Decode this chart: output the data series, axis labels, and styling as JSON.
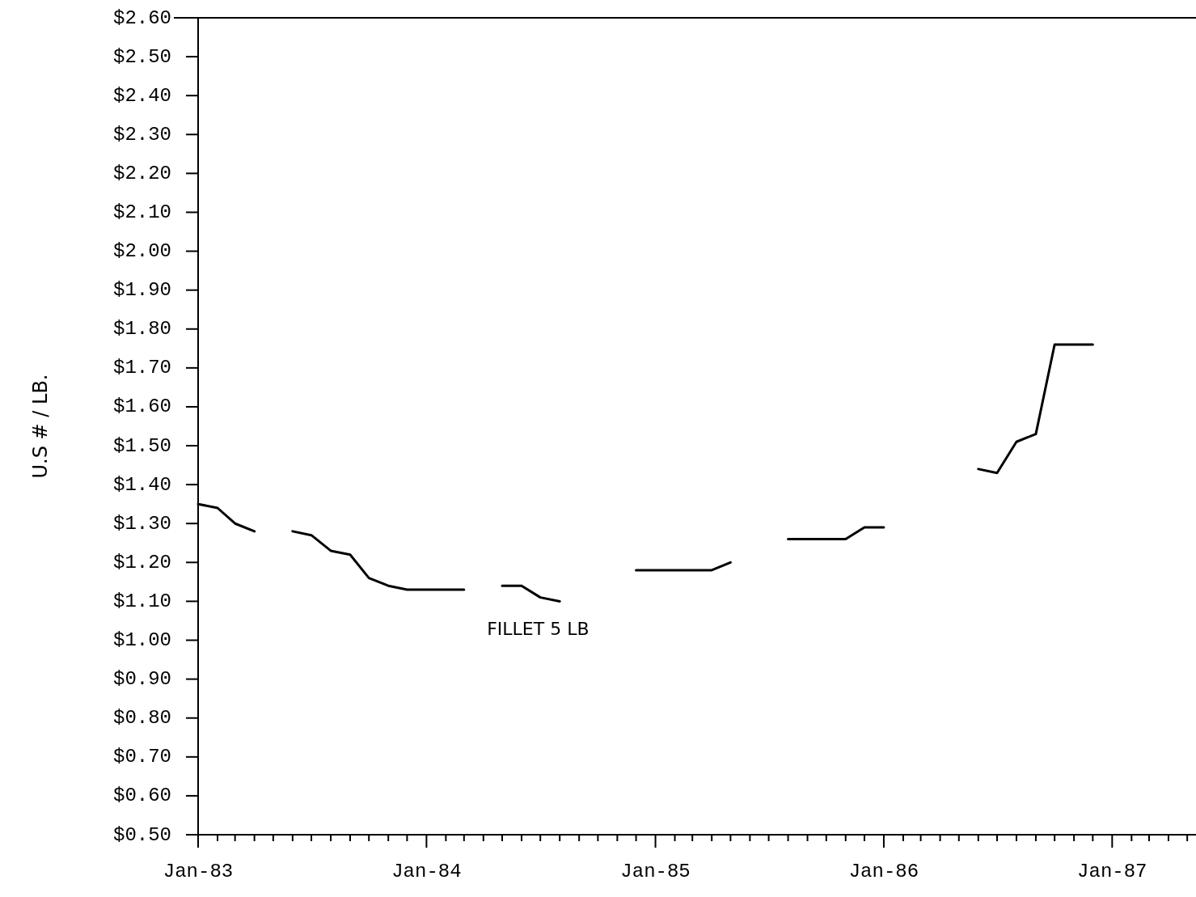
{
  "chart_data": {
    "type": "line",
    "ylabel": "U.S # / LB.",
    "grid": false,
    "marker": "none",
    "line_style": "solid",
    "x": [
      "1983-01",
      "1983-02",
      "1983-03",
      "1983-04",
      "1983-05",
      "1983-06",
      "1983-07",
      "1983-08",
      "1983-09",
      "1983-10",
      "1983-11",
      "1983-12",
      "1984-01",
      "1984-02",
      "1984-03",
      "1984-04",
      "1984-05",
      "1984-06",
      "1984-07",
      "1984-08",
      "1984-09",
      "1984-10",
      "1984-11",
      "1984-12",
      "1985-01",
      "1985-02",
      "1985-03",
      "1985-04",
      "1985-05",
      "1985-06",
      "1985-07",
      "1985-08",
      "1985-09",
      "1985-10",
      "1985-11",
      "1985-12",
      "1986-01",
      "1986-02",
      "1986-03",
      "1986-04",
      "1986-05",
      "1986-06",
      "1986-07",
      "1986-08",
      "1986-09",
      "1986-10",
      "1986-11",
      "1986-12"
    ],
    "series": [
      {
        "name": "FILLET 5 LB",
        "color": "#000000",
        "values": [
          1.35,
          1.34,
          1.3,
          1.28,
          null,
          1.28,
          1.27,
          1.23,
          1.22,
          1.16,
          1.14,
          1.13,
          1.13,
          1.13,
          1.13,
          null,
          1.14,
          1.14,
          1.11,
          1.1,
          null,
          null,
          null,
          1.18,
          1.18,
          1.18,
          1.18,
          1.18,
          1.2,
          null,
          null,
          1.26,
          1.26,
          1.26,
          1.26,
          1.29,
          1.29,
          null,
          null,
          null,
          null,
          1.44,
          1.43,
          1.51,
          1.53,
          1.76,
          1.76,
          1.76
        ]
      }
    ],
    "xlim": [
      "1983-01",
      "1987-05-15"
    ],
    "xticks": [
      {
        "value": "1983-01",
        "label": "Jan-83"
      },
      {
        "value": "1983-02",
        "label": null
      },
      {
        "value": "1983-03",
        "label": null
      },
      {
        "value": "1983-04",
        "label": null
      },
      {
        "value": "1983-05",
        "label": null
      },
      {
        "value": "1983-06",
        "label": null
      },
      {
        "value": "1983-07",
        "label": null
      },
      {
        "value": "1983-08",
        "label": null
      },
      {
        "value": "1983-09",
        "label": null
      },
      {
        "value": "1983-10",
        "label": null
      },
      {
        "value": "1983-11",
        "label": null
      },
      {
        "value": "1983-12",
        "label": null
      },
      {
        "value": "1984-01",
        "label": "Jan-84"
      },
      {
        "value": "1984-02",
        "label": null
      },
      {
        "value": "1984-03",
        "label": null
      },
      {
        "value": "1984-04",
        "label": null
      },
      {
        "value": "1984-05",
        "label": null
      },
      {
        "value": "1984-06",
        "label": null
      },
      {
        "value": "1984-07",
        "label": null
      },
      {
        "value": "1984-08",
        "label": null
      },
      {
        "value": "1984-09",
        "label": null
      },
      {
        "value": "1984-10",
        "label": null
      },
      {
        "value": "1984-11",
        "label": null
      },
      {
        "value": "1984-12",
        "label": null
      },
      {
        "value": "1985-01",
        "label": "Jan-85"
      },
      {
        "value": "1985-02",
        "label": null
      },
      {
        "value": "1985-03",
        "label": null
      },
      {
        "value": "1985-04",
        "label": null
      },
      {
        "value": "1985-05",
        "label": null
      },
      {
        "value": "1985-06",
        "label": null
      },
      {
        "value": "1985-07",
        "label": null
      },
      {
        "value": "1985-08",
        "label": null
      },
      {
        "value": "1985-09",
        "label": null
      },
      {
        "value": "1985-10",
        "label": null
      },
      {
        "value": "1985-11",
        "label": null
      },
      {
        "value": "1985-12",
        "label": null
      },
      {
        "value": "1986-01",
        "label": "Jan-86"
      },
      {
        "value": "1986-02",
        "label": null
      },
      {
        "value": "1986-03",
        "label": null
      },
      {
        "value": "1986-04",
        "label": null
      },
      {
        "value": "1986-05",
        "label": null
      },
      {
        "value": "1986-06",
        "label": null
      },
      {
        "value": "1986-07",
        "label": null
      },
      {
        "value": "1986-08",
        "label": null
      },
      {
        "value": "1986-09",
        "label": null
      },
      {
        "value": "1986-10",
        "label": null
      },
      {
        "value": "1986-11",
        "label": null
      },
      {
        "value": "1986-12",
        "label": null
      },
      {
        "value": "1987-01",
        "label": "Jan-87"
      },
      {
        "value": "1987-02",
        "label": null
      },
      {
        "value": "1987-03",
        "label": null
      },
      {
        "value": "1987-04",
        "label": null
      },
      {
        "value": "1987-05",
        "label": null
      }
    ],
    "ylim": [
      0.5,
      2.6
    ],
    "yticks": [
      {
        "value": 0.5,
        "label": "$0.50"
      },
      {
        "value": 0.6,
        "label": "$0.60"
      },
      {
        "value": 0.7,
        "label": "$0.70"
      },
      {
        "value": 0.8,
        "label": "$0.80"
      },
      {
        "value": 0.9,
        "label": "$0.90"
      },
      {
        "value": 1.0,
        "label": "$1.00"
      },
      {
        "value": 1.1,
        "label": "$1.10"
      },
      {
        "value": 1.2,
        "label": "$1.20"
      },
      {
        "value": 1.3,
        "label": "$1.30"
      },
      {
        "value": 1.4,
        "label": "$1.40"
      },
      {
        "value": 1.5,
        "label": "$1.50"
      },
      {
        "value": 1.6,
        "label": "$1.60"
      },
      {
        "value": 1.7,
        "label": "$1.70"
      },
      {
        "value": 1.8,
        "label": "$1.80"
      },
      {
        "value": 1.9,
        "label": "$1.90"
      },
      {
        "value": 2.0,
        "label": "$2.00"
      },
      {
        "value": 2.1,
        "label": "$2.10"
      },
      {
        "value": 2.2,
        "label": "$2.20"
      },
      {
        "value": 2.3,
        "label": "$2.30"
      },
      {
        "value": 2.4,
        "label": "$2.40"
      },
      {
        "value": 2.5,
        "label": "$2.50"
      },
      {
        "value": 2.6,
        "label": "$2.60"
      }
    ]
  }
}
